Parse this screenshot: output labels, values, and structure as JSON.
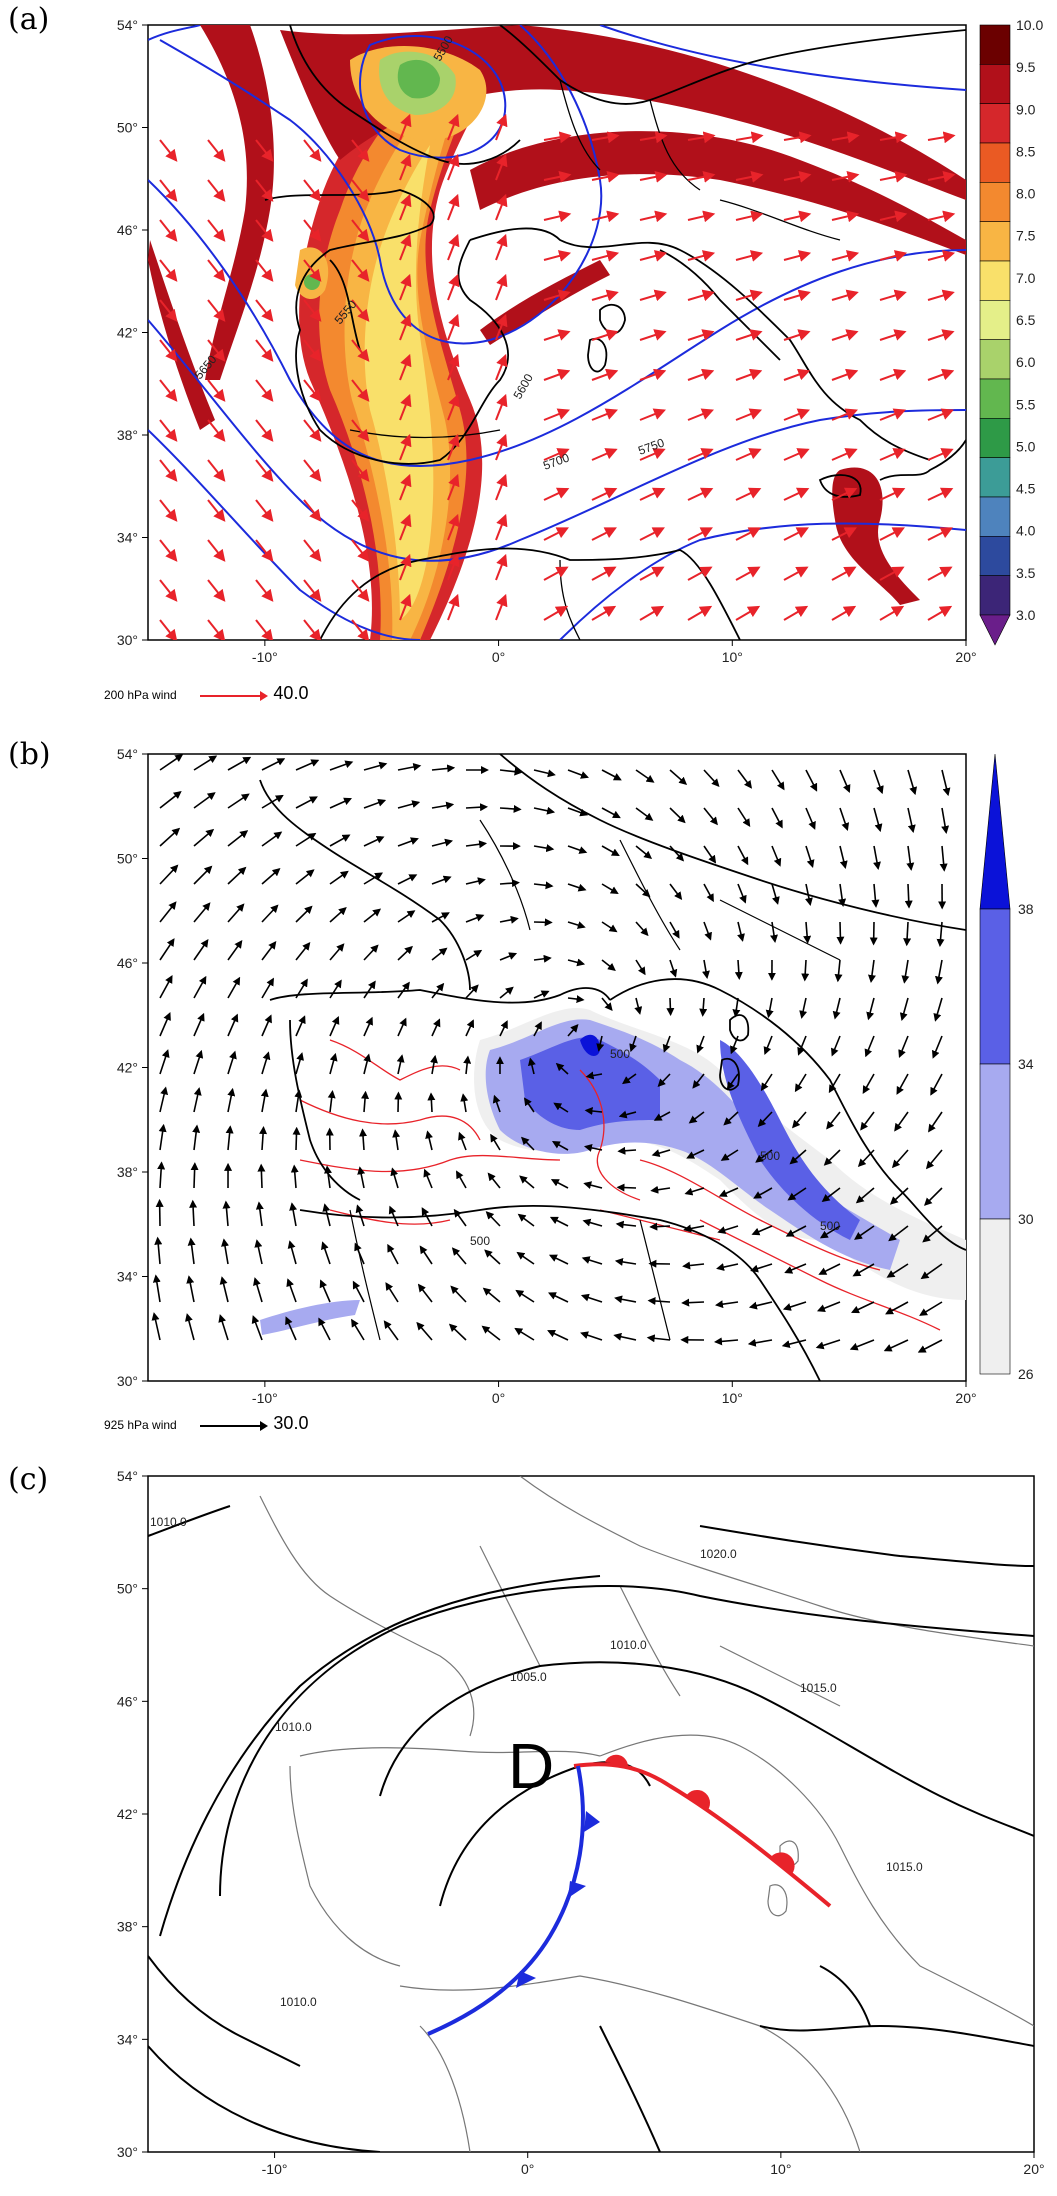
{
  "panels": [
    {
      "label": "(a)",
      "lat_ticks": [
        "54°",
        "50°",
        "46°",
        "42°",
        "38°",
        "34°",
        "30°"
      ],
      "lon_ticks": [
        "-10°",
        "0°",
        "10°",
        "20°"
      ],
      "colorbar_labels": [
        "10.0",
        "9.5",
        "9.0",
        "8.5",
        "8.0",
        "7.5",
        "7.0",
        "6.5",
        "6.0",
        "5.5",
        "5.0",
        "4.5",
        "4.0",
        "3.5",
        "3.0"
      ],
      "colorbar_colors": [
        "#6b0000",
        "#b1101a",
        "#d5272b",
        "#ea5a23",
        "#f3892f",
        "#f8b544",
        "#f9e06a",
        "#e4ef89",
        "#a9d26b",
        "#62b74f",
        "#2e9a47",
        "#3c9c97",
        "#4e83bd",
        "#2d4a9e",
        "#3c2577",
        "#6a1e8a"
      ],
      "contour_labels": [
        "5500",
        "5550",
        "5600",
        "5650",
        "5700",
        "5750"
      ],
      "wind_legend": {
        "text": "200  hPa wind",
        "value": "40.0"
      }
    },
    {
      "label": "(b)",
      "lat_ticks": [
        "54°",
        "50°",
        "46°",
        "42°",
        "38°",
        "34°",
        "30°"
      ],
      "lon_ticks": [
        "-10°",
        "0°",
        "10°",
        "20°"
      ],
      "colorbar_labels": [
        "38",
        "34",
        "30",
        "26"
      ],
      "colorbar_colors": [
        "#0b12d8",
        "#5a60e6",
        "#a7aaf0",
        "#efefef"
      ],
      "contour_labels": [
        "500",
        "500",
        "500",
        "500"
      ],
      "wind_legend": {
        "text": "925  hPa wind",
        "value": "30.0"
      }
    },
    {
      "label": "(c)",
      "lat_ticks": [
        "54°",
        "50°",
        "46°",
        "42°",
        "38°",
        "34°",
        "30°"
      ],
      "lon_ticks": [
        "-10°",
        "0°",
        "10°",
        "20°"
      ],
      "isobar_labels": [
        "1020.0",
        "1010.0",
        "1015.0",
        "1010.0",
        "1005.0",
        "1010.0",
        "1015.0",
        "1010.0"
      ],
      "low_symbol": "D"
    }
  ]
}
